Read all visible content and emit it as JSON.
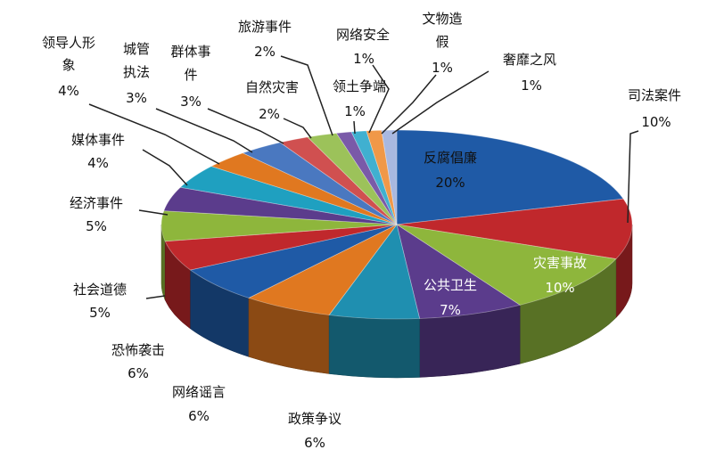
{
  "chart_data": {
    "type": "pie",
    "style": "3d",
    "grid": false,
    "legend": "none",
    "slices": [
      {
        "label": "反腐倡廉",
        "value": 20,
        "value_label": "20%",
        "color": "#1F5AA6"
      },
      {
        "label": "司法案件",
        "value": 10,
        "value_label": "10%",
        "color": "#C0282C"
      },
      {
        "label": "灾害事故",
        "value": 10,
        "value_label": "10%",
        "color": "#8EB63C"
      },
      {
        "label": "公共卫生",
        "value": 7,
        "value_label": "7%",
        "color": "#5B3C8C"
      },
      {
        "label": "政策争议",
        "value": 6,
        "value_label": "6%",
        "color": "#1F8FB0"
      },
      {
        "label": "网络谣言",
        "value": 6,
        "value_label": "6%",
        "color": "#E07820"
      },
      {
        "label": "恐怖袭击",
        "value": 6,
        "value_label": "6%",
        "color": "#1F5AA6"
      },
      {
        "label": "社会道德",
        "value": 5,
        "value_label": "5%",
        "color": "#C0282C"
      },
      {
        "label": "经济事件",
        "value": 5,
        "value_label": "5%",
        "color": "#8EB63C"
      },
      {
        "label": "媒体事件",
        "value": 4,
        "value_label": "4%",
        "color": "#5B3C8C"
      },
      {
        "label": "领导人形象",
        "value": 4,
        "value_label": "4%",
        "color": "#1FA0C0"
      },
      {
        "label": "城管执法",
        "value": 3,
        "value_label": "3%",
        "color": "#E07820"
      },
      {
        "label": "群体事件",
        "value": 3,
        "value_label": "3%",
        "color": "#4A78C0"
      },
      {
        "label": "自然灾害",
        "value": 2,
        "value_label": "2%",
        "color": "#D05050"
      },
      {
        "label": "旅游事件",
        "value": 2,
        "value_label": "2%",
        "color": "#9CC25A"
      },
      {
        "label": "领土争端",
        "value": 1,
        "value_label": "1%",
        "color": "#7A5AA8"
      },
      {
        "label": "网络安全",
        "value": 1,
        "value_label": "1%",
        "color": "#40B0D0"
      },
      {
        "label": "文物造假",
        "value": 1,
        "value_label": "1%",
        "color": "#F09848"
      },
      {
        "label": "奢靡之风",
        "value": 1,
        "value_label": "1%",
        "color": "#A8B8E0"
      }
    ]
  }
}
